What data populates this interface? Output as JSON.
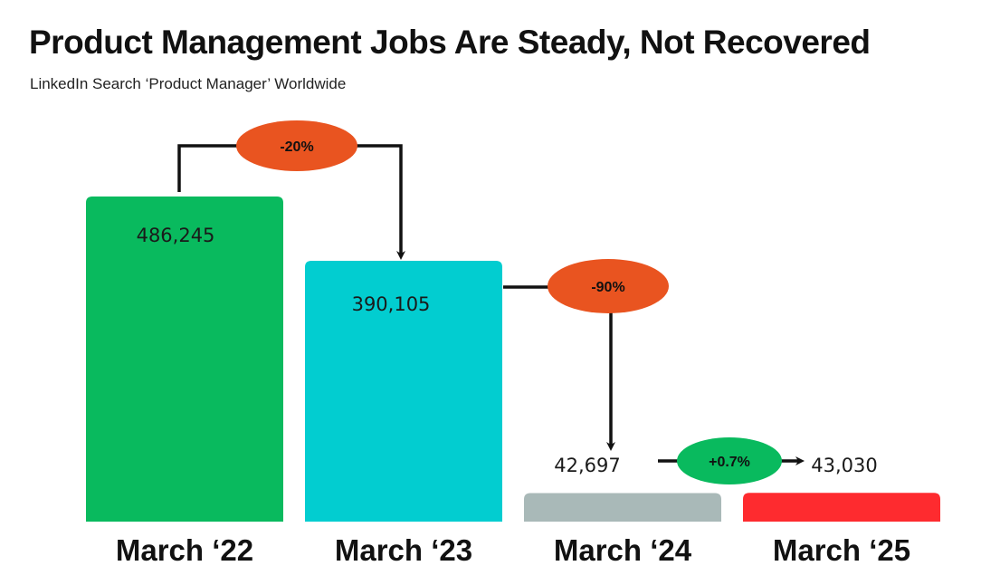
{
  "chart_data": {
    "type": "bar",
    "title": "Product Management Jobs Are Steady, Not Recovered",
    "subtitle": "LinkedIn Search ‘Product Manager’ Worldwide",
    "categories": [
      "March ‘22",
      "March ‘23",
      "March ‘24",
      "March ‘25"
    ],
    "values": [
      486245,
      390105,
      42697,
      43030
    ],
    "value_labels": [
      "486,245",
      "390,105",
      "42,697",
      "43,030"
    ],
    "bar_colors": [
      "#09BA5E",
      "#02CDD0",
      "#A9B9B8",
      "#FE2B2F"
    ],
    "changes": [
      {
        "from": 0,
        "to": 1,
        "label": "-20%",
        "color": "#E95420"
      },
      {
        "from": 1,
        "to": 2,
        "label": "-90%",
        "color": "#E95420"
      },
      {
        "from": 2,
        "to": 3,
        "label": "+0.7%",
        "color": "#09BA5E"
      }
    ],
    "xlabel": "",
    "ylabel": "",
    "grid": false,
    "legend": "none"
  }
}
